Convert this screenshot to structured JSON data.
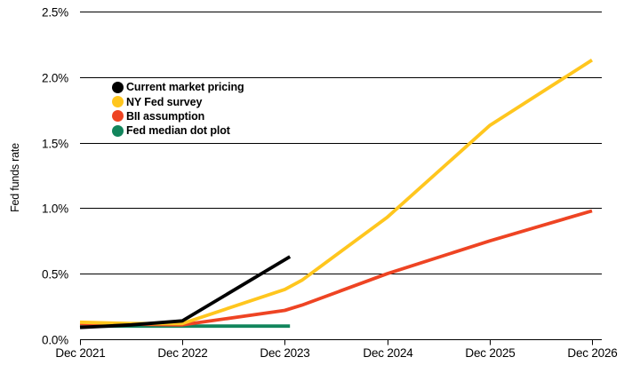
{
  "chart_data": {
    "type": "line",
    "title": "",
    "ylabel": "Fed funds rate",
    "x_unit": "months after Dec 2021",
    "y_unit": "percent",
    "xlim": [
      0,
      60
    ],
    "ylim": [
      0,
      2.5
    ],
    "grid": "horizontal-only",
    "legend_position": "inside-upper-left",
    "x_ticks": [
      {
        "pos": 0,
        "label": "Dec 2021"
      },
      {
        "pos": 12,
        "label": "Dec 2022"
      },
      {
        "pos": 24,
        "label": "Dec 2023"
      },
      {
        "pos": 36,
        "label": "Dec 2024"
      },
      {
        "pos": 48,
        "label": "Dec 2025"
      },
      {
        "pos": 60,
        "label": "Dec 2026"
      }
    ],
    "y_ticks": [
      {
        "value": 0.0,
        "label": "0.0%"
      },
      {
        "value": 0.5,
        "label": "0.5%"
      },
      {
        "value": 1.0,
        "label": "1.0%"
      },
      {
        "value": 1.5,
        "label": "1.5%"
      },
      {
        "value": 2.0,
        "label": "2.0%"
      },
      {
        "value": 2.5,
        "label": "2.5%"
      }
    ],
    "series": [
      {
        "name": "Current market pricing",
        "color": "#000000",
        "points": [
          [
            0,
            0.09
          ],
          [
            6,
            0.11
          ],
          [
            12,
            0.14
          ],
          [
            24.6,
            0.63
          ]
        ]
      },
      {
        "name": "NY Fed survey",
        "color": "#FFC61E",
        "points": [
          [
            0,
            0.13
          ],
          [
            6,
            0.12
          ],
          [
            12,
            0.12
          ],
          [
            24,
            0.38
          ],
          [
            26,
            0.45
          ],
          [
            36,
            0.93
          ],
          [
            48,
            1.63
          ],
          [
            60,
            2.13
          ]
        ]
      },
      {
        "name": "BII assumption",
        "color": "#EE4423",
        "points": [
          [
            0,
            0.12
          ],
          [
            12,
            0.11
          ],
          [
            24,
            0.22
          ],
          [
            26,
            0.26
          ],
          [
            36,
            0.5
          ],
          [
            48,
            0.75
          ],
          [
            60,
            0.98
          ]
        ]
      },
      {
        "name": "Fed median dot plot",
        "color": "#12855C",
        "points": [
          [
            0,
            0.1
          ],
          [
            12,
            0.1
          ],
          [
            24.6,
            0.1
          ]
        ]
      }
    ]
  }
}
